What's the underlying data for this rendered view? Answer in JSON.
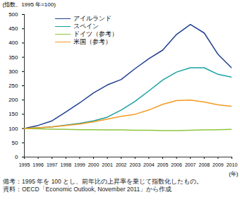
{
  "chart_data": {
    "type": "line",
    "ylabel": "(指数、1995 年=100)",
    "xlabel": "(年)",
    "note": "備考：1995 年を 100 とし、前年比の上昇率を乗じて指数化したもの。",
    "source": "資料：OECD「Economic Outlook, November 2011」から作成",
    "x": [
      1995,
      1996,
      1997,
      1998,
      1999,
      2000,
      2001,
      2002,
      2003,
      2004,
      2005,
      2006,
      2007,
      2008,
      2009,
      2010
    ],
    "series": [
      {
        "name": "アイルランド",
        "color": "#1f3f8f",
        "values": [
          100,
          111,
          127,
          158,
          190,
          225,
          253,
          272,
          310,
          345,
          375,
          430,
          465,
          435,
          360,
          312
        ]
      },
      {
        "name": "スペイン",
        "color": "#1aa0a0",
        "values": [
          100,
          103,
          106,
          112,
          118,
          127,
          140,
          165,
          195,
          232,
          270,
          298,
          313,
          313,
          290,
          280
        ]
      },
      {
        "name": "ドイツ（参考）",
        "color": "#8cc63f",
        "values": [
          100,
          99,
          98,
          97,
          96,
          96,
          95,
          95,
          94,
          94,
          93,
          93,
          94,
          95,
          96,
          97
        ]
      },
      {
        "name": "米国（参考）",
        "color": "#f39a1e",
        "values": [
          100,
          103,
          106,
          111,
          116,
          124,
          133,
          143,
          150,
          165,
          185,
          198,
          200,
          193,
          183,
          178
        ]
      }
    ],
    "xlim": [
      1995,
      2010
    ],
    "xticks": [
      1995,
      1996,
      1997,
      1998,
      1999,
      2000,
      2001,
      2002,
      2003,
      2004,
      2005,
      2006,
      2007,
      2008,
      2009,
      2010
    ],
    "ylim": [
      0,
      500
    ],
    "yticks": [
      0,
      50,
      100,
      150,
      200,
      250,
      300,
      350,
      400,
      450,
      500
    ],
    "grid": false,
    "legend": "top-left"
  }
}
